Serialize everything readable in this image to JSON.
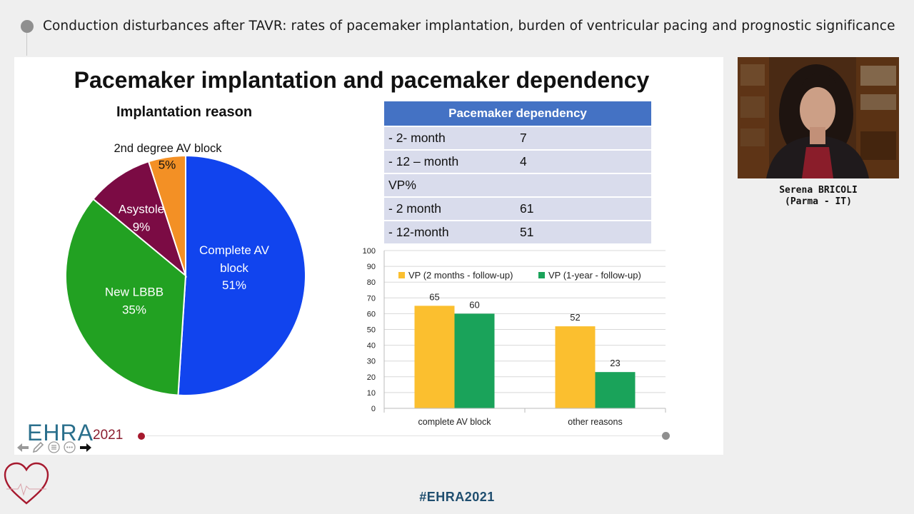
{
  "session_title": "Conduction disturbances after TAVR: rates of pacemaker implantation, burden of ventricular pacing and prognostic significance",
  "slide": {
    "title": "Pacemaker implantation and pacemaker dependency",
    "pie_title": "Implantation reason",
    "table": {
      "header": "Pacemaker dependency",
      "rows": [
        {
          "label": "- 2- month",
          "value": "7"
        },
        {
          "label": "- 12 – month",
          "value": "4"
        },
        {
          "label": "VP%",
          "value": ""
        },
        {
          "label": "- 2 month",
          "value": "61"
        },
        {
          "label": "- 12-month",
          "value": "51"
        }
      ]
    }
  },
  "chart_data": [
    {
      "type": "pie",
      "title": "Implantation reason",
      "labels": [
        "Complete AV block",
        "New LBBB",
        "Asystole",
        "2nd degree AV block"
      ],
      "values": [
        51,
        35,
        9,
        5
      ],
      "value_labels": [
        "51%",
        "35%",
        "9%",
        "5%"
      ],
      "colors": [
        "#1144ee",
        "#22a122",
        "#7b0b44",
        "#f39025"
      ]
    },
    {
      "type": "bar",
      "categories": [
        "complete AV block",
        "other reasons"
      ],
      "series": [
        {
          "name": "VP (2 months - follow-up)",
          "values": [
            65,
            52
          ],
          "color": "#fbbf2f"
        },
        {
          "name": "VP (1-year - follow-up)",
          "values": [
            60,
            23
          ],
          "color": "#1aa35a"
        }
      ],
      "ylim": [
        0,
        100
      ],
      "yticks": [
        "0",
        "10",
        "20",
        "30",
        "40",
        "50",
        "60",
        "70",
        "80",
        "90",
        "100"
      ],
      "grid": true,
      "legend": "top"
    }
  ],
  "presenter": {
    "name": "Serena BRICOLI",
    "affiliation": "(Parma - IT)"
  },
  "branding": {
    "logo_text": "EHRA",
    "logo_year": "2021",
    "hashtag": "#EHRA2021"
  },
  "nav_icons": [
    "arrow-left-icon",
    "pen-icon",
    "menu-icon",
    "more-icon",
    "arrow-right-icon"
  ],
  "colors": {
    "accent": "#2a6f8c",
    "brand_red": "#a6192e",
    "table_header": "#4472c4",
    "table_row": "#d9dcec"
  }
}
